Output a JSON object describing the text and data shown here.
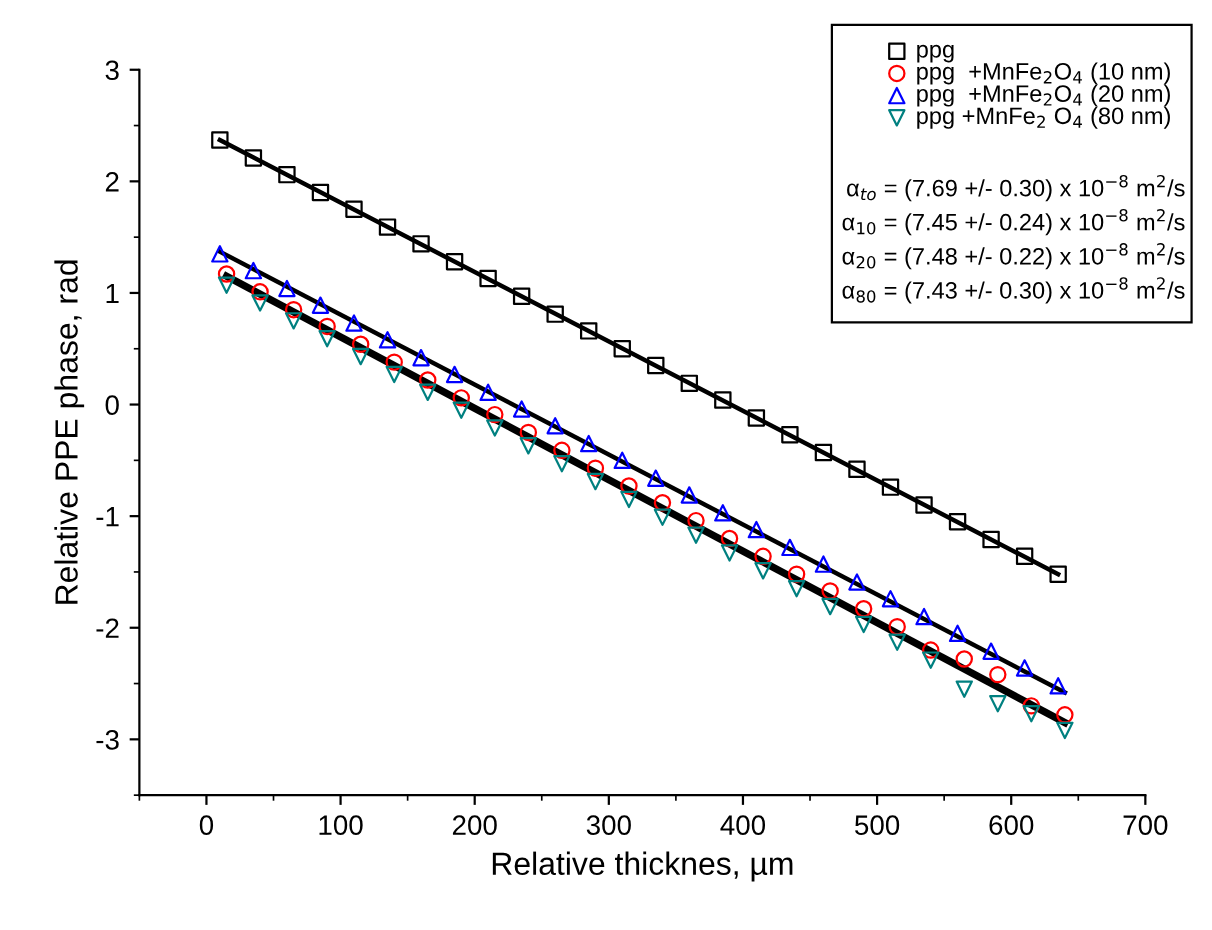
{
  "chart_data": {
    "type": "scatter",
    "xlabel": "Relative thicknes, µm",
    "ylabel": "Relative PPE phase, rad",
    "xlim": [
      -50,
      700
    ],
    "xticks": [
      0,
      100,
      200,
      300,
      400,
      500,
      600,
      700
    ],
    "ylim": [
      -3.5,
      3
    ],
    "yticks": [
      -3,
      -2,
      -1,
      0,
      1,
      2,
      3
    ],
    "grid": false,
    "legend": "top right",
    "series": [
      {
        "name": "ppg",
        "marker": "square",
        "color": "#000000",
        "x": [
          10,
          35,
          60,
          85,
          110,
          135,
          160,
          185,
          210,
          235,
          260,
          285,
          310,
          335,
          360,
          385,
          410,
          435,
          460,
          485,
          510,
          535,
          560,
          585,
          610,
          635
        ],
        "values": [
          2.37,
          2.21,
          2.06,
          1.9,
          1.75,
          1.59,
          1.44,
          1.28,
          1.13,
          0.97,
          0.81,
          0.66,
          0.5,
          0.35,
          0.19,
          0.04,
          -0.12,
          -0.27,
          -0.43,
          -0.58,
          -0.74,
          -0.9,
          -1.05,
          -1.21,
          -1.36,
          -1.52
        ]
      },
      {
        "name": "ppg  +MnFe$_{2}$O$_{4}$ (10 nm)",
        "marker": "circle",
        "color": "#ff0000",
        "x": [
          15,
          40,
          65,
          90,
          115,
          140,
          165,
          190,
          215,
          240,
          265,
          290,
          315,
          340,
          365,
          390,
          415,
          440,
          465,
          490,
          515,
          540,
          565,
          590,
          615,
          640
        ],
        "values": [
          1.17,
          1.01,
          0.85,
          0.7,
          0.54,
          0.38,
          0.22,
          0.06,
          -0.09,
          -0.25,
          -0.41,
          -0.57,
          -0.73,
          -0.88,
          -1.04,
          -1.2,
          -1.36,
          -1.52,
          -1.67,
          -1.83,
          -1.99,
          -2.2,
          -2.28,
          -2.42,
          -2.7,
          -2.78
        ]
      },
      {
        "name": "ppg  +MnFe$_{2}$O$_{4}$ (20 nm)",
        "marker": "triangle",
        "color": "#0000ff",
        "x": [
          10,
          35,
          60,
          85,
          110,
          135,
          160,
          185,
          210,
          235,
          260,
          285,
          310,
          335,
          360,
          385,
          410,
          435,
          460,
          485,
          510,
          535,
          560,
          585,
          610,
          635
        ],
        "values": [
          1.35,
          1.2,
          1.04,
          0.89,
          0.73,
          0.58,
          0.42,
          0.27,
          0.11,
          -0.04,
          -0.19,
          -0.35,
          -0.5,
          -0.66,
          -0.81,
          -0.97,
          -1.12,
          -1.28,
          -1.43,
          -1.59,
          -1.74,
          -1.9,
          -2.05,
          -2.21,
          -2.36,
          -2.52
        ]
      },
      {
        "name": "ppg +MnFe$_{2}$ O$_{4}$ (80 nm)",
        "marker": "triangle_down",
        "color": "#008080",
        "x": [
          15,
          40,
          65,
          90,
          115,
          140,
          165,
          190,
          215,
          240,
          265,
          290,
          315,
          340,
          365,
          390,
          415,
          440,
          465,
          490,
          515,
          540,
          565,
          590,
          615,
          640
        ],
        "values": [
          1.07,
          0.91,
          0.75,
          0.59,
          0.43,
          0.27,
          0.11,
          -0.05,
          -0.21,
          -0.37,
          -0.53,
          -0.69,
          -0.85,
          -1.01,
          -1.17,
          -1.33,
          -1.49,
          -1.65,
          -1.81,
          -1.97,
          -2.13,
          -2.29,
          -2.55,
          -2.68,
          -2.77,
          -2.92
        ]
      },
      {
        "type": "line",
        "color": "#000000",
        "x": [
          10,
          635
        ],
        "values": [
          2.37,
          -1.52
        ]
      },
      {
        "type": "line",
        "color": "#000000",
        "x": [
          10,
          640
        ],
        "values": [
          1.37,
          -2.58
        ]
      },
      {
        "type": "line",
        "color": "#000000",
        "x": [
          15,
          640
        ],
        "values": [
          1.15,
          -2.85
        ]
      }
    ],
    "annotations": [
      "α$_{to}$ = (7.69 +/- 0.30) x 10$^{−8}$ m$^{2}$/s",
      "α$_{10}$ = (7.45 +/- 0.24) x 10$^{−8}$ m$^{2}$/s",
      "α$_{20}$ = (7.48 +/- 0.22) x 10$^{−8}$ m$^{2}$/s",
      "α$_{80}$ = (7.43 +/- 0.30) x 10$^{−8}$ m$^{2}$/s"
    ]
  }
}
